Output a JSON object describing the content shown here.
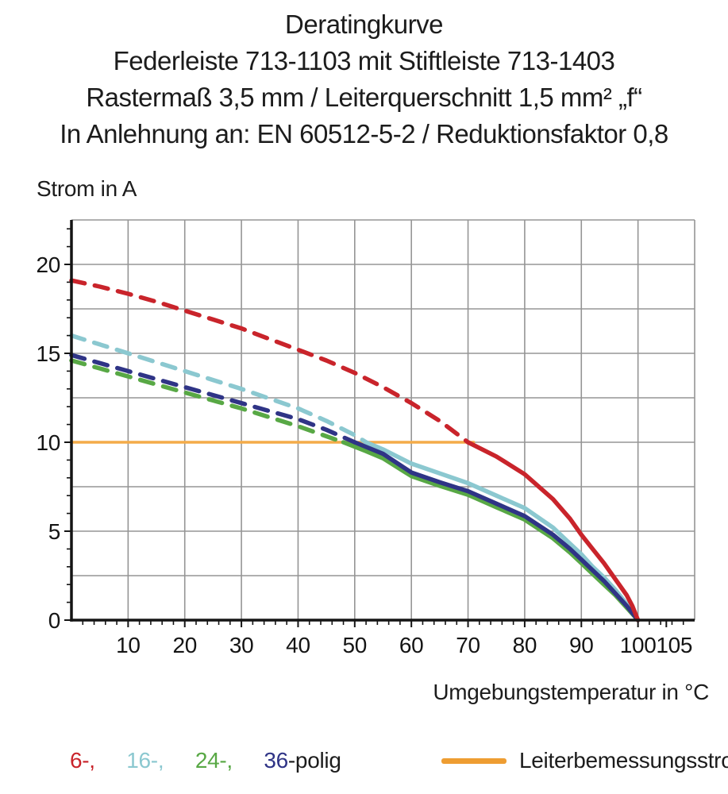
{
  "title_block": {
    "line1": "Deratingkurve",
    "line2": "Federleiste 713-1103 mit Stiftleiste 713-1403",
    "line3": "Rastermaß 3,5 mm / Leiterquerschnitt 1,5 mm² „f“",
    "line4": "In Anlehnung an: EN 60512-5-2 / Reduktionsfaktor 0,8"
  },
  "chart_data": {
    "type": "line",
    "title": "Deratingkurve",
    "ylabel": "Strom in A",
    "xlabel": "Umgebungstemperatur in °C",
    "xlim": [
      0,
      110
    ],
    "ylim": [
      0,
      22.5
    ],
    "x_grid_step": 10,
    "y_grid_step": 2.5,
    "x_minor_tick_step": 2,
    "y_minor_tick_step": 1,
    "x_tick_labels": [
      10,
      20,
      30,
      40,
      50,
      60,
      70,
      80,
      90,
      100,
      105
    ],
    "y_tick_labels": [
      0,
      5,
      10,
      15,
      20
    ],
    "grid": true,
    "legend_position": "bottom",
    "axis_color": "#141414",
    "grid_color": "#959595",
    "rated_current_value": 10,
    "series": [
      {
        "name": "6-polig",
        "color": "#c9242b",
        "solid_from_x": 70,
        "points": [
          [
            0,
            19.1
          ],
          [
            5,
            18.75
          ],
          [
            10,
            18.35
          ],
          [
            15,
            17.9
          ],
          [
            20,
            17.4
          ],
          [
            25,
            16.9
          ],
          [
            30,
            16.4
          ],
          [
            35,
            15.8
          ],
          [
            40,
            15.2
          ],
          [
            45,
            14.6
          ],
          [
            50,
            13.9
          ],
          [
            55,
            13.1
          ],
          [
            60,
            12.2
          ],
          [
            65,
            11.2
          ],
          [
            70,
            10
          ],
          [
            75,
            9.2
          ],
          [
            80,
            8.2
          ],
          [
            85,
            6.8
          ],
          [
            88,
            5.7
          ],
          [
            90,
            4.8
          ],
          [
            92,
            4.0
          ],
          [
            94,
            3.2
          ],
          [
            96,
            2.3
          ],
          [
            98,
            1.4
          ],
          [
            99,
            0.8
          ],
          [
            100,
            0
          ]
        ]
      },
      {
        "name": "16-polig",
        "color": "#8bc8d0",
        "solid_from_x": 52,
        "points": [
          [
            0,
            16.0
          ],
          [
            5,
            15.5
          ],
          [
            10,
            15.0
          ],
          [
            15,
            14.5
          ],
          [
            20,
            14.0
          ],
          [
            25,
            13.5
          ],
          [
            30,
            13.0
          ],
          [
            35,
            12.45
          ],
          [
            40,
            11.9
          ],
          [
            45,
            11.2
          ],
          [
            50,
            10.4
          ],
          [
            52,
            10
          ],
          [
            55,
            9.6
          ],
          [
            60,
            8.8
          ],
          [
            65,
            8.25
          ],
          [
            70,
            7.7
          ],
          [
            75,
            7.0
          ],
          [
            80,
            6.3
          ],
          [
            85,
            5.2
          ],
          [
            88,
            4.3
          ],
          [
            90,
            3.7
          ],
          [
            92,
            3.0
          ],
          [
            94,
            2.4
          ],
          [
            96,
            1.7
          ],
          [
            98,
            0.9
          ],
          [
            100,
            0
          ]
        ]
      },
      {
        "name": "24-polig",
        "color": "#58a845",
        "solid_from_x": 48,
        "points": [
          [
            0,
            14.6
          ],
          [
            5,
            14.15
          ],
          [
            10,
            13.7
          ],
          [
            15,
            13.25
          ],
          [
            20,
            12.8
          ],
          [
            25,
            12.35
          ],
          [
            30,
            11.9
          ],
          [
            35,
            11.4
          ],
          [
            40,
            10.9
          ],
          [
            44,
            10.45
          ],
          [
            48,
            10
          ],
          [
            52,
            9.5
          ],
          [
            55,
            9.1
          ],
          [
            60,
            8.1
          ],
          [
            65,
            7.55
          ],
          [
            70,
            7.05
          ],
          [
            75,
            6.35
          ],
          [
            80,
            5.65
          ],
          [
            85,
            4.6
          ],
          [
            88,
            3.8
          ],
          [
            90,
            3.2
          ],
          [
            92,
            2.6
          ],
          [
            94,
            2.0
          ],
          [
            96,
            1.4
          ],
          [
            98,
            0.7
          ],
          [
            100,
            0
          ]
        ]
      },
      {
        "name": "36-polig",
        "color": "#2f3486",
        "solid_from_x": 50,
        "points": [
          [
            0,
            14.9
          ],
          [
            5,
            14.45
          ],
          [
            10,
            14.0
          ],
          [
            15,
            13.55
          ],
          [
            20,
            13.1
          ],
          [
            25,
            12.65
          ],
          [
            30,
            12.2
          ],
          [
            35,
            11.75
          ],
          [
            40,
            11.3
          ],
          [
            45,
            10.7
          ],
          [
            50,
            10
          ],
          [
            55,
            9.35
          ],
          [
            60,
            8.3
          ],
          [
            65,
            7.75
          ],
          [
            70,
            7.25
          ],
          [
            75,
            6.55
          ],
          [
            80,
            5.85
          ],
          [
            85,
            4.8
          ],
          [
            88,
            4.0
          ],
          [
            90,
            3.4
          ],
          [
            92,
            2.8
          ],
          [
            94,
            2.2
          ],
          [
            96,
            1.5
          ],
          [
            98,
            0.8
          ],
          [
            100,
            0
          ]
        ]
      },
      {
        "name": "Leiterbemessungsstrom",
        "color": "#f4ab49",
        "solid_from_x": 0,
        "points": [
          [
            0,
            10
          ],
          [
            71,
            10
          ]
        ]
      }
    ]
  },
  "legend": {
    "items": [
      {
        "label": "6-,",
        "color": "#c9242b"
      },
      {
        "label": "16-,",
        "color": "#8bc8d0"
      },
      {
        "label": "24-,",
        "color": "#58a845"
      },
      {
        "label": "36",
        "color": "#2f3486"
      }
    ],
    "suffix": "-polig",
    "rated_current": {
      "label": "Leiterbemessungsstrom",
      "color": "#ee9d32"
    }
  }
}
